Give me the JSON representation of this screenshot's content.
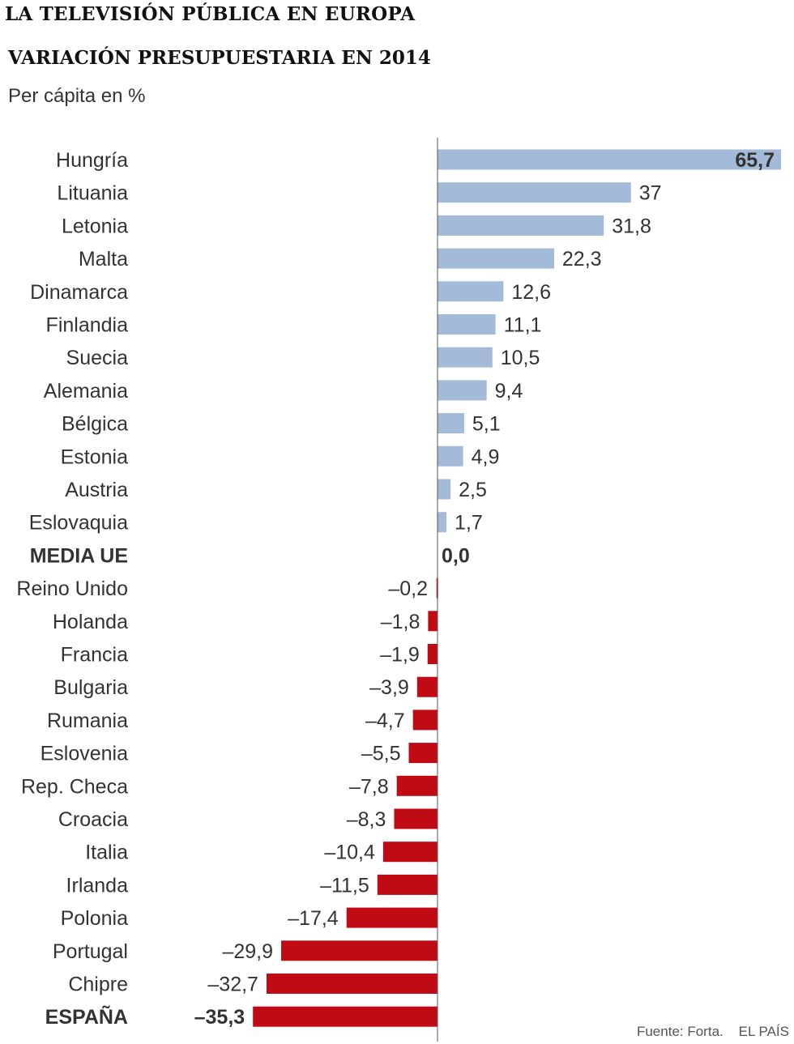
{
  "header": {
    "title": "LA TELEVISIÓN PÚBLICA EN EUROPA",
    "subtitle": "VARIACIÓN PRESUPUESTARIA  EN 2014",
    "unit": "Per cápita en %"
  },
  "footer": {
    "source": "Fuente: Forta.    EL PAÍS"
  },
  "colors": {
    "positive": "#a3bad8",
    "negative": "#c00a14",
    "axis": "#555555"
  },
  "chart_data": {
    "type": "bar",
    "orientation": "horizontal",
    "title": "VARIACIÓN PRESUPUESTARIA  EN 2014",
    "xlabel": "",
    "ylabel": "",
    "xlim": [
      -35.3,
      65.7
    ],
    "grid": false,
    "categories": [
      "Hungría",
      "Lituania",
      "Letonia",
      "Malta",
      "Dinamarca",
      "Finlandia",
      "Suecia",
      "Alemania",
      "Bélgica",
      "Estonia",
      "Austria",
      "Eslovaquia",
      "MEDIA UE",
      "Reino Unido",
      "Holanda",
      "Francia",
      "Bulgaria",
      "Rumania",
      "Eslovenia",
      "Rep. Checa",
      "Croacia",
      "Italia",
      "Irlanda",
      "Polonia",
      "Portugal",
      "Chipre",
      "ESPAÑA"
    ],
    "values": [
      65.7,
      37,
      31.8,
      22.3,
      12.6,
      11.1,
      10.5,
      9.4,
      5.1,
      4.9,
      2.5,
      1.7,
      0.0,
      -0.2,
      -1.8,
      -1.9,
      -3.9,
      -4.7,
      -5.5,
      -7.8,
      -8.3,
      -10.4,
      -11.5,
      -17.4,
      -29.9,
      -32.7,
      -35.3
    ],
    "value_labels": [
      "65,7",
      "37",
      "31,8",
      "22,3",
      "12,6",
      "11,1",
      "10,5",
      "9,4",
      "5,1",
      "4,9",
      "2,5",
      "1,7",
      "0,0",
      "–0,2",
      "–1,8",
      "–1,9",
      "–3,9",
      "–4,7",
      "–5,5",
      "–7,8",
      "–8,3",
      "–10,4",
      "–11,5",
      "–17,4",
      "–29,9",
      "–32,7",
      "–35,3"
    ],
    "highlighted": [
      "MEDIA UE",
      "ESPAÑA",
      "Hungría"
    ]
  }
}
